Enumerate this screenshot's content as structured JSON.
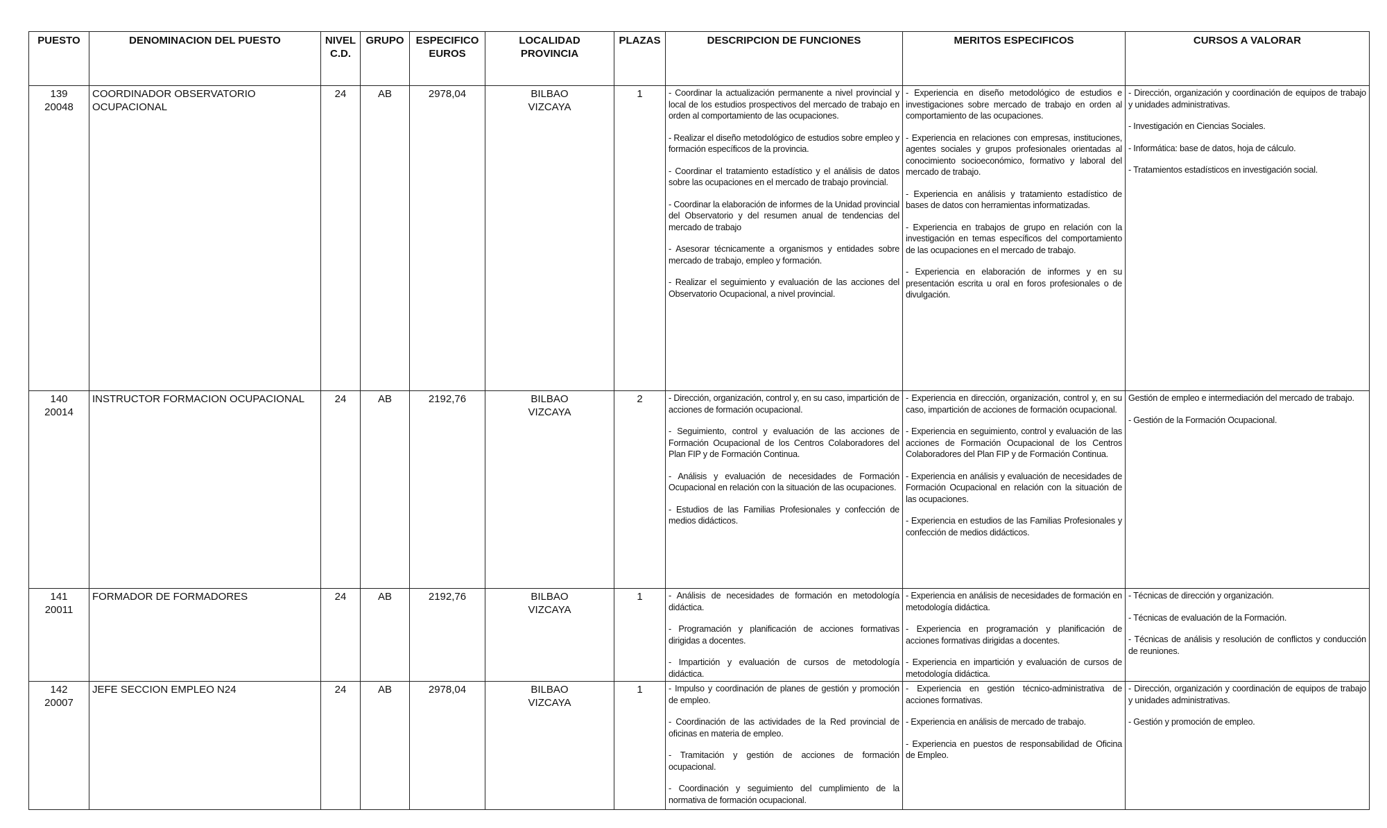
{
  "headers": [
    "PUESTO",
    "DENOMINACION DEL PUESTO",
    "NIVEL\nC.D.",
    "GRUPO",
    "ESPECIFICO\nEUROS",
    "LOCALIDAD\nPROVINCIA",
    "PLAZAS",
    "DESCRIPCION DE FUNCIONES",
    "MERITOS ESPECIFICOS",
    "CURSOS A VALORAR"
  ],
  "rows": [
    {
      "puesto": "139",
      "codigo": "20048",
      "denominacion": "COORDINADOR OBSERVATORIO OCUPACIONAL",
      "nivel": "24",
      "grupo": "AB",
      "especifico": "2978,04",
      "localidad": "BILBAO",
      "provincia": "VIZCAYA",
      "plazas": "1",
      "funciones": [
        "- Coordinar la actualización permanente a nivel provincial y local de los estudios prospectivos del mercado de trabajo en orden al comportamiento de las ocupaciones.",
        "- Realizar el diseño metodológico de estudios sobre empleo y formación específicos de la provincia.",
        "- Coordinar el tratamiento estadístico y el análisis de datos sobre las ocupaciones en el mercado de trabajo provincial.",
        "- Coordinar la elaboración de informes de la Unidad provincial del Observatorio y del resumen anual de tendencias del mercado de trabajo",
        "- Asesorar técnicamente a organismos y entidades sobre mercado de trabajo, empleo y formación.",
        "- Realizar el seguimiento y evaluación de las acciones del Observatorio Ocupacional, a nivel provincial."
      ],
      "meritos": [
        "- Experiencia en diseño metodológico de estudios e investigaciones sobre mercado de trabajo en orden al comportamiento de las ocupaciones.",
        "- Experiencia en relaciones con empresas, instituciones, agentes sociales y grupos profesionales orientadas al conocimiento socioeconómico, formativo y laboral del mercado de trabajo.",
        "- Experiencia en análisis y tratamiento estadístico de bases de datos con herramientas informatizadas.",
        "- Experiencia en trabajos de grupo en relación con la investigación en temas específicos del comportamiento de las ocupaciones en el mercado de trabajo.",
        "- Experiencia en elaboración de informes y en su presentación escrita u oral en foros profesionales o de divulgación."
      ],
      "cursos": [
        "- Dirección, organización y coordinación de equipos de trabajo y unidades administrativas.",
        "- Investigación en Ciencias Sociales.",
        "- Informática: base de datos, hoja de cálculo.",
        "- Tratamientos estadísticos en investigación social."
      ]
    },
    {
      "puesto": "140",
      "codigo": "20014",
      "denominacion": "INSTRUCTOR FORMACION OCUPACIONAL",
      "nivel": "24",
      "grupo": "AB",
      "especifico": "2192,76",
      "localidad": "BILBAO",
      "provincia": "VIZCAYA",
      "plazas": "2",
      "funciones": [
        "- Dirección, organización, control y, en su caso, impartición de acciones de formación ocupacional.",
        "- Seguimiento, control y evaluación de las acciones de Formación Ocupacional de los Centros Colaboradores del Plan FIP y de Formación Continua.",
        "- Análisis y evaluación de necesidades de Formación Ocupacional en relación con la situación de las ocupaciones.",
        "- Estudios de las Familias Profesionales y confección de medios didácticos."
      ],
      "meritos": [
        "- Experiencia en dirección, organización, control y, en su caso, impartición de acciones de formación ocupacional.",
        "- Experiencia en seguimiento, control y evaluación de las acciones de Formación Ocupacional de los Centros Colaboradores del Plan FIP y de Formación Continua.",
        "- Experiencia en análisis y evaluación de necesidades de Formación Ocupacional en relación con la situación de las ocupaciones.",
        "- Experiencia en estudios de las Familias Profesionales y confección de medios didácticos."
      ],
      "cursos": [
        "Gestión de empleo e intermediación del mercado de trabajo.",
        "- Gestión de la Formación Ocupacional."
      ]
    },
    {
      "puesto": "141",
      "codigo": "20011",
      "denominacion": "FORMADOR DE FORMADORES",
      "nivel": "24",
      "grupo": "AB",
      "especifico": "2192,76",
      "localidad": "BILBAO",
      "provincia": "VIZCAYA",
      "plazas": "1",
      "funciones": [
        "- Análisis de necesidades de formación en metodología didáctica.",
        "- Programación y planificación de acciones formativas dirigidas a docentes.",
        "- Impartición y evaluación de cursos de metodología didáctica."
      ],
      "meritos": [
        "- Experiencia en análisis de necesidades de formación en metodología didáctica.",
        "- Experiencia en programación y planificación de acciones formativas dirigidas a docentes.",
        "- Experiencia en impartición y evaluación de cursos de metodología didáctica."
      ],
      "cursos": [
        "- Técnicas de dirección y organización.",
        "- Técnicas de evaluación de la Formación.",
        "- Técnicas de análisis y resolución de conflictos y conducción de reuniones."
      ]
    },
    {
      "puesto": "142",
      "codigo": "20007",
      "denominacion": "JEFE SECCION EMPLEO N24",
      "nivel": "24",
      "grupo": "AB",
      "especifico": "2978,04",
      "localidad": "BILBAO",
      "provincia": "VIZCAYA",
      "plazas": "1",
      "funciones": [
        "- Impulso y coordinación de planes de gestión y promoción de empleo.",
        "- Coordinación de las actividades de la Red provincial de oficinas en materia de empleo.",
        "- Tramitación y gestión de acciones de formación ocupacional.",
        "- Coordinación y seguimiento del cumplimiento de la normativa de formación ocupacional."
      ],
      "meritos": [
        "- Experiencia en gestión técnico-administrativa de acciones formativas.",
        "- Experiencia en análisis de mercado de trabajo.",
        "- Experiencia en puestos de responsabilidad de Oficina de Empleo."
      ],
      "cursos": [
        "- Dirección, organización y coordinación de equipos de trabajo y unidades administrativas.",
        "- Gestión y promoción de empleo."
      ]
    }
  ]
}
